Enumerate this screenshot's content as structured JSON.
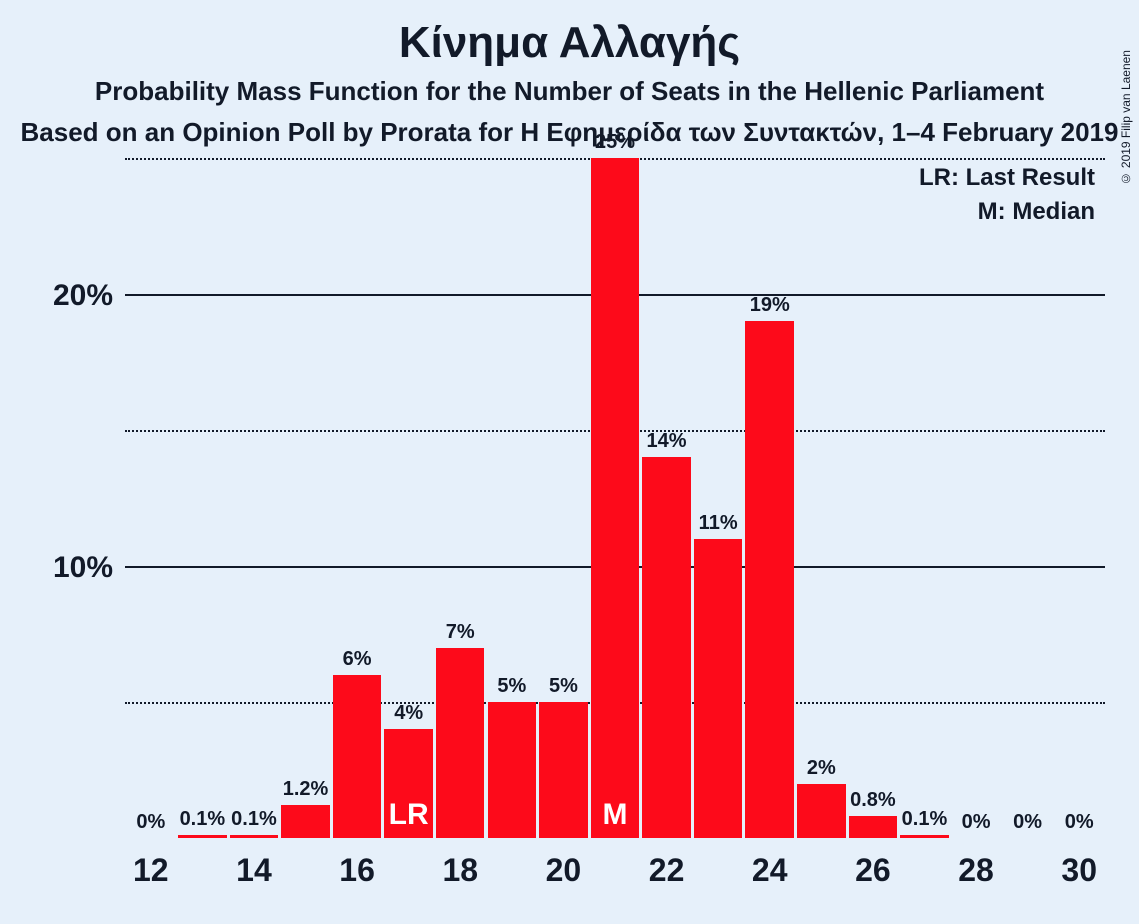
{
  "title": "Κίνημα Αλλαγής",
  "subtitle1": "Probability Mass Function for the Number of Seats in the Hellenic Parliament",
  "subtitle2": "Based on an Opinion Poll by Prorata for Η Εφημερίδα των Συντακτών, 1–4 February 2019",
  "copyright": "© 2019 Filip van Laenen",
  "legend": {
    "lr": "LR: Last Result",
    "m": "M: Median"
  },
  "chart": {
    "type": "bar",
    "background_color": "#e6f0fa",
    "bar_color": "#fd0a1a",
    "text_color": "#121A29",
    "title_fontsize": 44,
    "subtitle_fontsize": 26,
    "legend_fontsize": 24,
    "ylabel_fontsize": 30,
    "xlabel_fontsize": 32,
    "barlabel_fontsize": 20,
    "marker_fontsize": 30,
    "ylim": [
      0,
      25
    ],
    "y_gridlines": [
      {
        "value": 0,
        "label": "",
        "style": "none"
      },
      {
        "value": 5,
        "label": "",
        "style": "dotted"
      },
      {
        "value": 10,
        "label": "10%",
        "style": "solid"
      },
      {
        "value": 15,
        "label": "",
        "style": "dotted"
      },
      {
        "value": 20,
        "label": "20%",
        "style": "solid"
      },
      {
        "value": 25,
        "label": "",
        "style": "dotted"
      }
    ],
    "x_start": 12,
    "x_end": 30,
    "x_tick_step": 2,
    "bars": [
      {
        "x": 12,
        "value": 0,
        "label": "0%"
      },
      {
        "x": 13,
        "value": 0.1,
        "label": "0.1%"
      },
      {
        "x": 14,
        "value": 0.1,
        "label": "0.1%"
      },
      {
        "x": 15,
        "value": 1.2,
        "label": "1.2%"
      },
      {
        "x": 16,
        "value": 6,
        "label": "6%"
      },
      {
        "x": 17,
        "value": 4,
        "label": "4%",
        "marker": "LR"
      },
      {
        "x": 18,
        "value": 7,
        "label": "7%"
      },
      {
        "x": 19,
        "value": 5,
        "label": "5%"
      },
      {
        "x": 20,
        "value": 5,
        "label": "5%"
      },
      {
        "x": 21,
        "value": 25,
        "label": "25%",
        "marker": "M"
      },
      {
        "x": 22,
        "value": 14,
        "label": "14%"
      },
      {
        "x": 23,
        "value": 11,
        "label": "11%"
      },
      {
        "x": 24,
        "value": 19,
        "label": "19%"
      },
      {
        "x": 25,
        "value": 2,
        "label": "2%"
      },
      {
        "x": 26,
        "value": 0.8,
        "label": "0.8%"
      },
      {
        "x": 27,
        "value": 0.1,
        "label": "0.1%"
      },
      {
        "x": 28,
        "value": 0,
        "label": "0%"
      },
      {
        "x": 29,
        "value": 0,
        "label": "0%"
      },
      {
        "x": 30,
        "value": 0,
        "label": "0%"
      }
    ]
  }
}
